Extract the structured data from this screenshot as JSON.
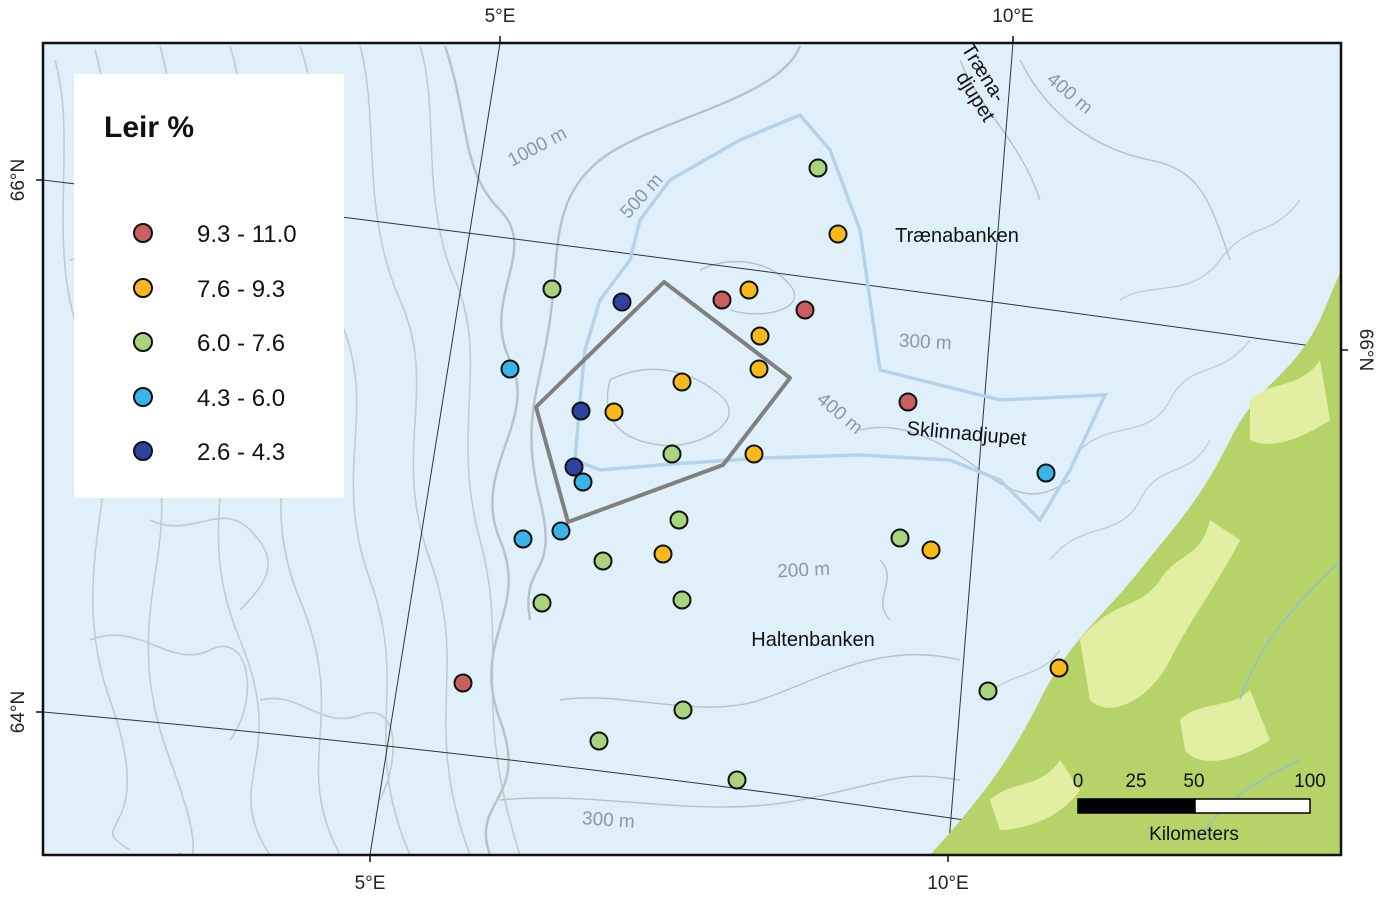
{
  "graticule": {
    "top": [
      "5°E",
      "10°E"
    ],
    "bottom": [
      "5°E",
      "10°E"
    ],
    "left": [
      "66°N",
      "64°N"
    ],
    "right": [
      "66°N"
    ]
  },
  "legend": {
    "title": "Leir %",
    "classes": [
      {
        "label": "9.3 - 11.0",
        "color": "#c96060"
      },
      {
        "label": "7.6 - 9.3",
        "color": "#f7b91e"
      },
      {
        "label": "6.0 - 7.6",
        "color": "#a9d37f"
      },
      {
        "label": "4.3 - 6.0",
        "color": "#3ab4e8"
      },
      {
        "label": "2.6 - 4.3",
        "color": "#2e43a0"
      }
    ]
  },
  "contour_labels": [
    "1000 m",
    "500 m",
    "400 m",
    "400 m",
    "300 m",
    "200 m",
    "300 m"
  ],
  "place_labels": [
    "Trænabanken",
    "Træna-",
    "djupet",
    "Sklinnadjupet",
    "Haltenbanken"
  ],
  "scale_bar": {
    "ticks": [
      "0",
      "25",
      "50",
      "100"
    ],
    "unit": "Kilometers"
  },
  "colors": {
    "sea": "#dff0fa",
    "contour": "#c4cacd",
    "land_green": "#b6d36a",
    "land_light": "#e2eea2",
    "study_area": "#808080",
    "blue_outline": "#b4d3ea"
  },
  "samples": [
    {
      "class": 2,
      "label": "6.0 - 7.6"
    },
    {
      "class": 1,
      "label": "7.6 - 9.3"
    },
    {
      "class": 2,
      "label": "6.0 - 7.6"
    },
    {
      "class": 4,
      "label": "2.6 - 4.3"
    },
    {
      "class": 0,
      "label": "9.3 - 11.0"
    },
    {
      "class": 1,
      "label": "7.6 - 9.3"
    },
    {
      "class": 0,
      "label": "9.3 - 11.0"
    },
    {
      "class": 1,
      "label": "7.6 - 9.3"
    },
    {
      "class": 3,
      "label": "4.3 - 6.0"
    },
    {
      "class": 1,
      "label": "7.6 - 9.3"
    },
    {
      "class": 1,
      "label": "7.6 - 9.3"
    },
    {
      "class": 4,
      "label": "2.6 - 4.3"
    },
    {
      "class": 1,
      "label": "7.6 - 9.3"
    },
    {
      "class": 0,
      "label": "9.3 - 11.0"
    },
    {
      "class": 2,
      "label": "6.0 - 7.6"
    },
    {
      "class": 1,
      "label": "7.6 - 9.3"
    },
    {
      "class": 4,
      "label": "2.6 - 4.3"
    },
    {
      "class": 3,
      "label": "4.3 - 6.0"
    },
    {
      "class": 3,
      "label": "4.3 - 6.0"
    },
    {
      "class": 2,
      "label": "6.0 - 7.6"
    },
    {
      "class": 3,
      "label": "4.3 - 6.0"
    },
    {
      "class": 3,
      "label": "4.3 - 6.0"
    },
    {
      "class": 2,
      "label": "6.0 - 7.6"
    },
    {
      "class": 1,
      "label": "7.6 - 9.3"
    },
    {
      "class": 2,
      "label": "6.0 - 7.6"
    },
    {
      "class": 1,
      "label": "7.6 - 9.3"
    },
    {
      "class": 2,
      "label": "6.0 - 7.6"
    },
    {
      "class": 2,
      "label": "6.0 - 7.6"
    },
    {
      "class": 0,
      "label": "9.3 - 11.0"
    },
    {
      "class": 2,
      "label": "6.0 - 7.6"
    },
    {
      "class": 1,
      "label": "7.6 - 9.3"
    },
    {
      "class": 2,
      "label": "6.0 - 7.6"
    },
    {
      "class": 2,
      "label": "6.0 - 7.6"
    },
    {
      "class": 2,
      "label": "6.0 - 7.6"
    }
  ]
}
